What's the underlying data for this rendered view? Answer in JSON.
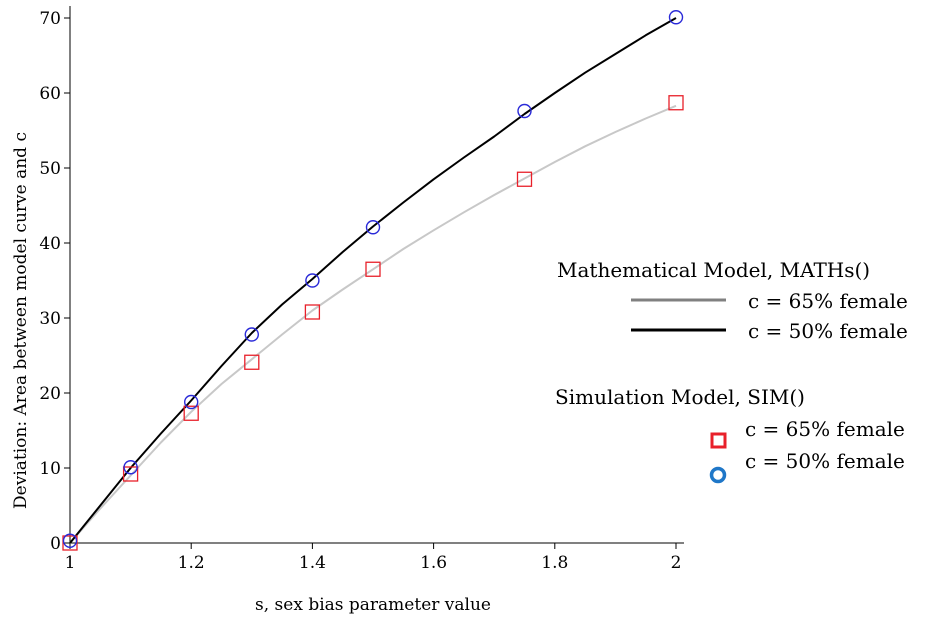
{
  "chart_data": {
    "type": "line",
    "xlabel": "s, sex bias parameter value",
    "ylabel": "Deviation: Area between model curve and c",
    "xlim": [
      1,
      2
    ],
    "ylim": [
      0,
      70
    ],
    "xticks": [
      1,
      1.2,
      1.4,
      1.6,
      1.8,
      2
    ],
    "xtick_labels": [
      "1",
      "1.2",
      "1.4",
      "1.6",
      "1.8",
      "2"
    ],
    "yticks": [
      0,
      10,
      20,
      30,
      40,
      50,
      60,
      70
    ],
    "ytick_labels": [
      "0",
      "10",
      "20",
      "30",
      "40",
      "50",
      "60",
      "70"
    ],
    "grid": false,
    "legend_position": "right",
    "legend": {
      "lines_title": "Mathematical Model, MATHs()",
      "markers_title": "Simulation Model, SIM()"
    },
    "series": [
      {
        "name": "c = 65% female",
        "group": "lines",
        "kind": "line",
        "color": "#c8c8c8",
        "legend_color": "#808080",
        "x": [
          1,
          1.05,
          1.1,
          1.15,
          1.2,
          1.25,
          1.3,
          1.35,
          1.4,
          1.45,
          1.5,
          1.55,
          1.6,
          1.65,
          1.7,
          1.75,
          1.8,
          1.85,
          1.9,
          1.95,
          2
        ],
        "y": [
          0,
          4.6,
          9.0,
          13.4,
          17.5,
          21.2,
          24.5,
          27.8,
          31.0,
          33.8,
          36.5,
          39.2,
          41.7,
          44.1,
          46.4,
          48.6,
          50.8,
          52.9,
          54.8,
          56.6,
          58.3
        ]
      },
      {
        "name": "c = 50% female",
        "group": "lines",
        "kind": "line",
        "color": "#000000",
        "legend_color": "#000000",
        "x": [
          1,
          1.05,
          1.1,
          1.15,
          1.2,
          1.25,
          1.3,
          1.35,
          1.4,
          1.45,
          1.5,
          1.55,
          1.6,
          1.65,
          1.7,
          1.75,
          1.8,
          1.85,
          1.9,
          1.95,
          2
        ],
        "y": [
          0,
          5.0,
          10.0,
          14.6,
          19.0,
          23.6,
          28.0,
          31.8,
          35.2,
          38.8,
          42.2,
          45.4,
          48.5,
          51.4,
          54.2,
          57.2,
          60.0,
          62.7,
          65.2,
          67.7,
          70.0
        ]
      },
      {
        "name": "c = 65% female",
        "group": "markers",
        "kind": "square",
        "color": "#e8202a",
        "x": [
          1,
          1.1,
          1.2,
          1.3,
          1.4,
          1.5,
          1.75,
          2
        ],
        "y": [
          0,
          9.2,
          17.3,
          24.1,
          30.8,
          36.5,
          48.5,
          58.7
        ]
      },
      {
        "name": "c = 50% female",
        "group": "markers",
        "kind": "circle",
        "color": "#2a2ad8",
        "legend_color": "#1f77c8",
        "x": [
          1,
          1.1,
          1.2,
          1.3,
          1.4,
          1.5,
          1.75,
          2
        ],
        "y": [
          0.3,
          10.1,
          18.8,
          27.8,
          35.0,
          42.1,
          57.6,
          70.1
        ]
      }
    ]
  }
}
